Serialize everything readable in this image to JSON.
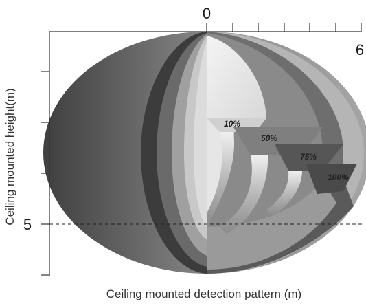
{
  "diagram": {
    "x_axis": {
      "origin_label": "0",
      "end_label": "6",
      "title": "Ceiling mounted detection pattern (m)"
    },
    "y_axis": {
      "title": "Ceiling mounted height(m)",
      "marked_label": "5"
    },
    "zones": [
      {
        "label": "10%"
      },
      {
        "label": "50%"
      },
      {
        "label": "75%"
      },
      {
        "label": "100%"
      }
    ],
    "colors": {
      "axis": "#333333",
      "dashed_line": "#222222",
      "outer_shell": "#8c8c8c",
      "inner_zone": "#e6e6e6"
    }
  }
}
